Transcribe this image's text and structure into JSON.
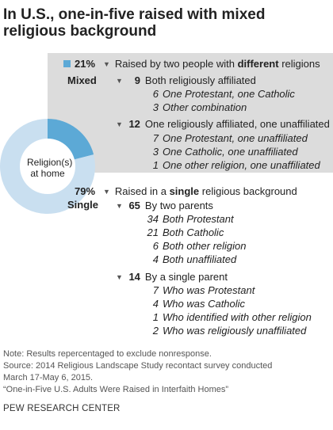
{
  "title": "In U.S., one-in-five raised with mixed religious background",
  "chart_data": {
    "type": "pie",
    "center_label": "Religion(s) at home",
    "slices": [
      {
        "name": "Mixed",
        "value": 21,
        "label": "21%",
        "color": "#5ca9d6"
      },
      {
        "name": "Single",
        "value": 79,
        "label": "79%",
        "color": "#c9dff0"
      }
    ]
  },
  "mixed": {
    "pct": "21%",
    "label": "Mixed",
    "heading_pre": "Raised by two people with ",
    "heading_bold": "different",
    "heading_post": " religions",
    "groups": [
      {
        "num": "9",
        "label": "Both religiously affiliated",
        "items": [
          {
            "n": "6",
            "text": "One Protestant, one Catholic"
          },
          {
            "n": "3",
            "text": "Other combination"
          }
        ]
      },
      {
        "num": "12",
        "label": "One religiously affiliated, one unaffiliated",
        "items": [
          {
            "n": "7",
            "text": "One Protestant, one unaffiliated"
          },
          {
            "n": "3",
            "text": "One Catholic, one unaffiliated"
          },
          {
            "n": "1",
            "text": "One other religion, one unaffiliated"
          }
        ]
      }
    ]
  },
  "single": {
    "pct": "79%",
    "label": "Single",
    "heading_pre": "Raised in a ",
    "heading_bold": "single",
    "heading_post": " religious background",
    "groups": [
      {
        "num": "65",
        "label": "By two parents",
        "items": [
          {
            "n": "34",
            "text": "Both Protestant"
          },
          {
            "n": "21",
            "text": "Both Catholic"
          },
          {
            "n": "6",
            "text": "Both other religion"
          },
          {
            "n": "4",
            "text": "Both unaffiliated"
          }
        ]
      },
      {
        "num": "14",
        "label": "By a single parent",
        "items": [
          {
            "n": "7",
            "text": "Who was Protestant"
          },
          {
            "n": "4",
            "text": "Who was Catholic"
          },
          {
            "n": "1",
            "text": "Who identified with other religion"
          },
          {
            "n": "2",
            "text": "Who was religiously unaffiliated"
          }
        ]
      }
    ]
  },
  "footer": {
    "note": "Note: Results repercentaged to exclude nonresponse.",
    "source1": "Source: 2014 Religious Landscape Study recontact survey conducted",
    "source2": "March 17-May 6, 2015.",
    "source3": "“One-in-Five U.S. Adults Were Raised in Interfaith Homes”",
    "brand": "PEW RESEARCH CENTER"
  }
}
